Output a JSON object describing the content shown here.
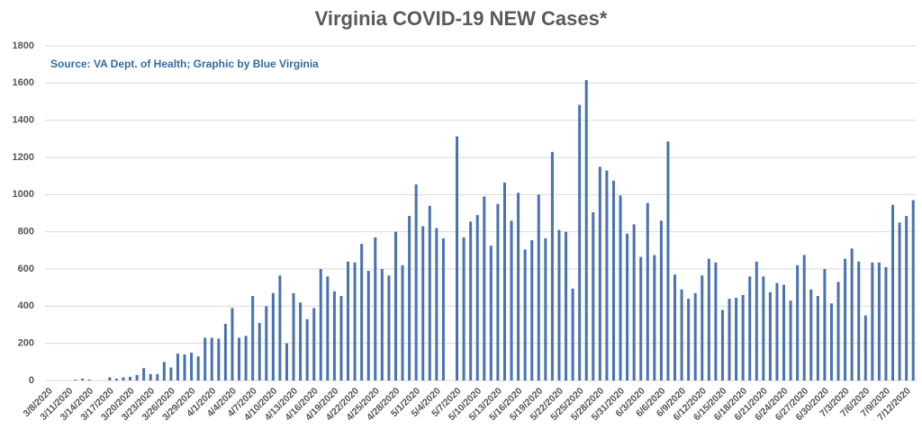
{
  "chart_data": {
    "type": "bar",
    "title": "Virginia COVID-19 NEW Cases*",
    "subtitle": "Source: VA Dept. of Health; Graphic by Blue Virginia",
    "color": "#4a72b0",
    "grid": true,
    "ylim": [
      0,
      1800
    ],
    "yticks": [
      0,
      200,
      400,
      600,
      800,
      1000,
      1200,
      1400,
      1600,
      1800
    ],
    "categories": [
      "3/8/2020",
      null,
      null,
      "3/11/2020",
      null,
      null,
      "3/14/2020",
      null,
      null,
      "3/17/2020",
      null,
      null,
      "3/20/2020",
      null,
      null,
      "3/23/2020",
      null,
      null,
      "3/26/2020",
      null,
      null,
      "3/29/2020",
      null,
      null,
      "4/1/2020",
      null,
      null,
      "4/4/2020",
      null,
      null,
      "4/7/2020",
      null,
      null,
      "4/10/2020",
      null,
      null,
      "4/13/2020",
      null,
      null,
      "4/16/2020",
      null,
      null,
      "4/19/2020",
      null,
      null,
      "4/22/2020",
      null,
      null,
      "4/25/2020",
      null,
      null,
      "4/28/2020",
      null,
      null,
      "5/1/2020",
      null,
      null,
      "5/4/2020",
      null,
      null,
      "5/7/2020",
      null,
      null,
      "5/10/2020",
      null,
      null,
      "5/13/2020",
      null,
      null,
      "5/16/2020",
      null,
      null,
      "5/19/2020",
      null,
      null,
      "5/22/2020",
      null,
      null,
      "5/25/2020",
      null,
      null,
      "5/28/2020",
      null,
      null,
      "5/31/2020",
      null,
      null,
      "6/3/2020",
      null,
      null,
      "6/6/2020",
      null,
      null,
      "6/9/2020",
      null,
      null,
      "6/12/2020",
      null,
      null,
      "6/15/2020",
      null,
      null,
      "6/18/2020",
      null,
      null,
      "6/21/2020",
      null,
      null,
      "6/24/2020",
      null,
      null,
      "6/27/2020",
      null,
      null,
      "6/30/2020",
      null,
      null,
      "7/3/2020",
      null,
      null,
      "7/6/2020",
      null,
      null,
      "7/9/2020",
      null,
      null,
      "7/12/2020",
      null
    ],
    "values": [
      0,
      0,
      0,
      0,
      5,
      10,
      5,
      0,
      0,
      17,
      10,
      17,
      20,
      30,
      67,
      35,
      35,
      100,
      70,
      145,
      140,
      150,
      130,
      230,
      230,
      225,
      305,
      390,
      230,
      240,
      455,
      310,
      400,
      470,
      565,
      200,
      470,
      420,
      330,
      390,
      600,
      560,
      480,
      455,
      640,
      635,
      735,
      590,
      770,
      600,
      565,
      800,
      620,
      885,
      1055,
      830,
      940,
      820,
      765,
      0,
      1313,
      770,
      855,
      890,
      990,
      725,
      950,
      1065,
      860,
      1010,
      705,
      755,
      1000,
      765,
      1230,
      810,
      800,
      495,
      1483,
      1616,
      905,
      1150,
      1130,
      1075,
      995,
      790,
      840,
      665,
      955,
      675,
      860,
      1286,
      570,
      490,
      440,
      470,
      565,
      655,
      635,
      380,
      440,
      445,
      460,
      560,
      640,
      560,
      475,
      525,
      515,
      430,
      620,
      675,
      490,
      455,
      600,
      415,
      530,
      655,
      710,
      640,
      350,
      635,
      635,
      610,
      945,
      850,
      885,
      970
    ]
  }
}
